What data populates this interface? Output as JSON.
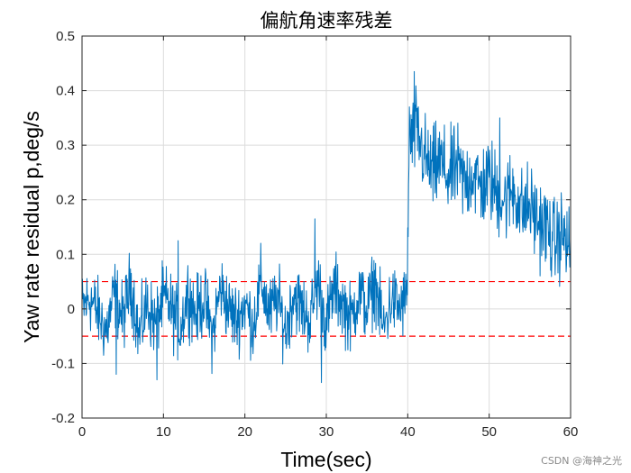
{
  "chart_data": {
    "type": "line",
    "title": "偏航角速率残差",
    "xlabel": "Time(sec)",
    "ylabel": "Yaw rate residual p,deg/s",
    "xlim": [
      0,
      60
    ],
    "ylim": [
      -0.2,
      0.5
    ],
    "xticks": [
      "0",
      "10",
      "20",
      "30",
      "40",
      "50",
      "60"
    ],
    "yticks": [
      "-0.2",
      "-0.1",
      "0",
      "0.1",
      "0.2",
      "0.3",
      "0.4",
      "0.5"
    ],
    "grid": true,
    "series": [
      {
        "color": "#0072BD",
        "x": [
          0,
          1,
          2,
          3,
          4,
          5,
          6,
          7,
          8,
          9,
          10,
          11,
          12,
          13,
          14,
          15,
          16,
          17,
          18,
          19,
          20,
          21,
          22,
          23,
          24,
          25,
          26,
          27,
          28,
          29,
          30,
          31,
          32,
          33,
          34,
          35,
          36,
          37,
          38,
          39,
          39.9,
          40.2,
          40.6,
          41,
          42,
          43,
          44,
          45,
          46,
          47,
          48,
          49,
          50,
          51,
          52,
          53,
          54,
          55,
          56,
          57,
          58,
          59,
          60
        ],
        "values": [
          0.0,
          0.02,
          -0.01,
          -0.04,
          0.03,
          -0.02,
          0.05,
          -0.05,
          0.01,
          -0.03,
          0.02,
          0.0,
          -0.04,
          0.03,
          -0.01,
          0.02,
          -0.05,
          0.04,
          0.0,
          -0.02,
          0.01,
          -0.03,
          0.05,
          -0.01,
          0.02,
          -0.04,
          0.03,
          0.0,
          -0.02,
          0.05,
          -0.03,
          0.04,
          0.01,
          -0.02,
          0.03,
          0.0,
          0.05,
          -0.04,
          0.02,
          0.0,
          0.02,
          0.32,
          0.3,
          0.33,
          0.28,
          0.25,
          0.27,
          0.24,
          0.26,
          0.23,
          0.25,
          0.22,
          0.24,
          0.21,
          0.2,
          0.22,
          0.18,
          0.19,
          0.16,
          0.15,
          0.12,
          0.14,
          0.1
        ],
        "peaks": [
          {
            "x": 4.2,
            "y": -0.12
          },
          {
            "x": 9.2,
            "y": -0.13
          },
          {
            "x": 11.8,
            "y": 0.125
          },
          {
            "x": 28.6,
            "y": 0.165
          },
          {
            "x": 29.4,
            "y": -0.135
          },
          {
            "x": 40.8,
            "y": 0.435
          },
          {
            "x": 51.3,
            "y": 0.35
          }
        ]
      }
    ],
    "threshold_lines": [
      {
        "y": 0.05,
        "color": "#FF0000",
        "style": "dashed"
      },
      {
        "y": -0.05,
        "color": "#FF0000",
        "style": "dashed"
      }
    ]
  },
  "watermark": "CSDN @海神之光"
}
